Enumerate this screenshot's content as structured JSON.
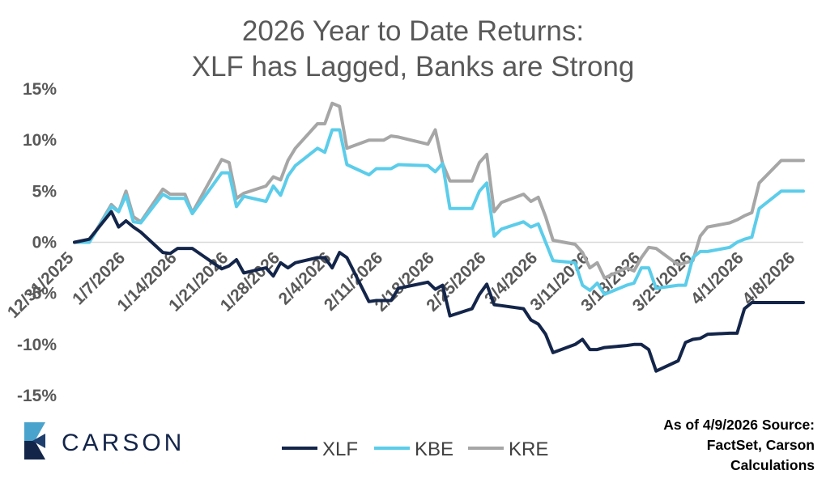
{
  "chart_data": {
    "type": "line",
    "title": "2026 Year to Date Returns:",
    "subtitle": "XLF has Lagged, Banks are Strong",
    "xlabel": "",
    "ylabel": "",
    "ylim": [
      -15,
      15
    ],
    "yticks": [
      "15%",
      "10%",
      "5%",
      "0%",
      "-5%",
      "-10%",
      "-15%"
    ],
    "xticks": [
      "12/31/2025",
      "1/7/2026",
      "1/14/2026",
      "1/21/2026",
      "1/28/2026",
      "2/4/2026",
      "2/11/2026",
      "2/18/2026",
      "2/25/2026",
      "3/4/2026",
      "3/11/2026",
      "3/18/2026",
      "3/25/2026",
      "4/1/2026",
      "4/8/2026"
    ],
    "grid": false,
    "legend_position": "bottom",
    "x": [
      "12/31/2025",
      "1/2/2026",
      "1/5/2026",
      "1/6/2026",
      "1/7/2026",
      "1/8/2026",
      "1/9/2026",
      "1/12/2026",
      "1/13/2026",
      "1/14/2026",
      "1/15/2026",
      "1/16/2026",
      "1/20/2026",
      "1/21/2026",
      "1/22/2026",
      "1/23/2026",
      "1/26/2026",
      "1/27/2026",
      "1/28/2026",
      "1/29/2026",
      "1/30/2026",
      "2/2/2026",
      "2/3/2026",
      "2/4/2026",
      "2/5/2026",
      "2/6/2026",
      "2/9/2026",
      "2/10/2026",
      "2/11/2026",
      "2/12/2026",
      "2/13/2026",
      "2/17/2026",
      "2/18/2026",
      "2/19/2026",
      "2/20/2026",
      "2/23/2026",
      "2/24/2026",
      "2/25/2026",
      "2/26/2026",
      "2/27/2026",
      "3/2/2026",
      "3/3/2026",
      "3/4/2026",
      "3/5/2026",
      "3/6/2026",
      "3/9/2026",
      "3/10/2026",
      "3/11/2026",
      "3/12/2026",
      "3/13/2026",
      "3/16/2026",
      "3/17/2026",
      "3/18/2026",
      "3/19/2026",
      "3/20/2026",
      "3/23/2026",
      "3/24/2026",
      "3/25/2026",
      "3/26/2026",
      "3/27/2026",
      "3/30/2026",
      "3/31/2026",
      "4/1/2026",
      "4/2/2026",
      "4/3/2026",
      "4/6/2026",
      "4/7/2026",
      "4/8/2026",
      "4/9/2026"
    ],
    "series": [
      {
        "name": "XLF",
        "color": "#14254a",
        "values": [
          0.0,
          0.3,
          3.0,
          1.5,
          2.1,
          1.5,
          1.0,
          -1.0,
          -1.1,
          -0.6,
          -0.6,
          -0.6,
          -2.6,
          -2.3,
          -1.7,
          -3.0,
          -2.5,
          -3.3,
          -2.0,
          -2.5,
          -2.0,
          -1.5,
          -1.5,
          -2.5,
          -1.0,
          -1.5,
          -5.8,
          -5.7,
          -5.7,
          -5.7,
          -4.5,
          -3.9,
          -4.6,
          -4.2,
          -7.2,
          -6.5,
          -5.1,
          -4.1,
          -6.1,
          -6.2,
          -6.5,
          -7.6,
          -8.0,
          -9.0,
          -10.8,
          -10.0,
          -9.5,
          -10.5,
          -10.5,
          -10.3,
          -10.1,
          -10.0,
          -10.0,
          -10.5,
          -12.6,
          -11.6,
          -9.8,
          -9.5,
          -9.4,
          -9.0,
          -8.9,
          -8.9,
          -6.5,
          -5.9,
          -5.9,
          -5.9,
          -5.9,
          -5.9,
          -5.9
        ]
      },
      {
        "name": "KBE",
        "color": "#5bcdea",
        "values": [
          0.0,
          0.0,
          3.5,
          3.0,
          4.6,
          2.0,
          1.9,
          4.7,
          4.3,
          4.3,
          4.3,
          2.8,
          6.8,
          6.8,
          3.5,
          4.5,
          4.0,
          5.5,
          4.6,
          6.5,
          7.5,
          9.2,
          8.8,
          11.0,
          11.0,
          7.6,
          6.6,
          7.2,
          7.2,
          7.2,
          7.6,
          7.5,
          6.9,
          7.7,
          3.3,
          3.3,
          5.0,
          5.8,
          0.6,
          1.3,
          2.0,
          1.5,
          1.8,
          0.0,
          -1.8,
          -2.0,
          -4.2,
          -4.7,
          -4.0,
          -5.1,
          -4.2,
          -4.0,
          -2.5,
          -2.5,
          -4.5,
          -4.2,
          -4.2,
          -1.5,
          -0.9,
          -0.9,
          -0.5,
          0.0,
          0.3,
          0.5,
          3.3,
          5.0,
          5.0,
          5.0,
          5.0
        ]
      },
      {
        "name": "KRE",
        "color": "#a6a6a6",
        "values": [
          0.0,
          0.0,
          3.7,
          3.0,
          5.0,
          2.5,
          2.0,
          5.2,
          4.7,
          4.7,
          4.7,
          2.9,
          8.1,
          7.8,
          4.3,
          4.8,
          5.5,
          6.4,
          6.1,
          8.0,
          9.2,
          11.6,
          11.6,
          13.6,
          13.3,
          9.2,
          10.0,
          10.0,
          10.0,
          10.4,
          10.3,
          9.6,
          11.0,
          7.7,
          6.0,
          6.0,
          7.8,
          8.6,
          3.0,
          3.9,
          4.7,
          4.0,
          4.4,
          2.5,
          0.2,
          -0.2,
          -1.0,
          -2.5,
          -2.0,
          -3.5,
          -2.5,
          -2.8,
          -1.5,
          -0.5,
          -0.6,
          -2.2,
          -2.0,
          -1.8,
          0.6,
          1.5,
          1.9,
          2.2,
          2.6,
          2.9,
          5.8,
          8.0,
          8.0,
          8.0,
          8.0
        ]
      }
    ]
  },
  "legend": [
    {
      "label": "XLF",
      "color": "#14254a"
    },
    {
      "label": "KBE",
      "color": "#5bcdea"
    },
    {
      "label": "KRE",
      "color": "#a6a6a6"
    }
  ],
  "source_note": [
    "As of 4/9/2026 Source:",
    "FactSet, Carson",
    "Calculations"
  ],
  "logo": {
    "name": "carson-logo",
    "text": "CARSON",
    "color": "#14254a",
    "accent": "#4aa3cc"
  }
}
